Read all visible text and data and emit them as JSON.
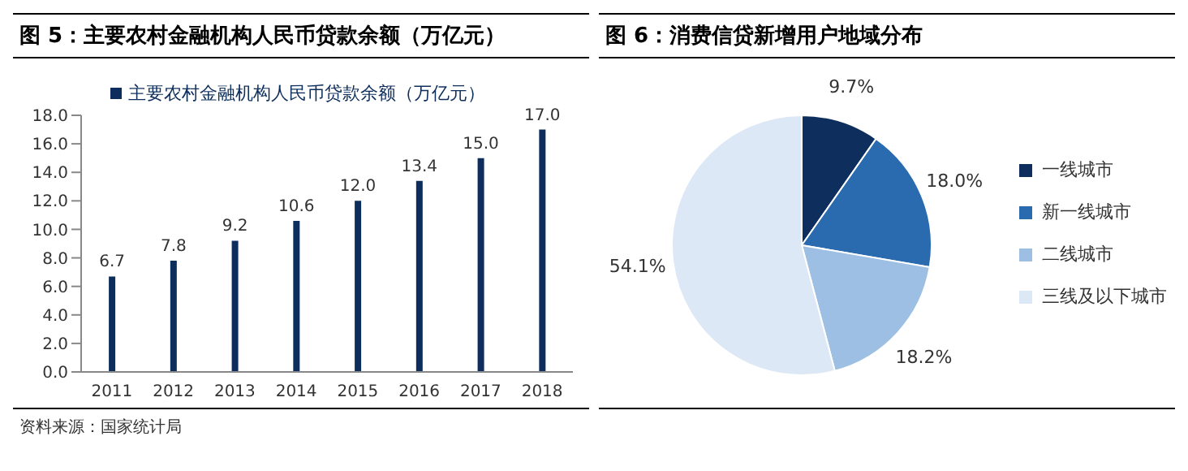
{
  "chart_data": [
    {
      "type": "bar",
      "title": "图 5：主要农村金融机构人民币贷款余额（万亿元）",
      "categories": [
        "2011",
        "2012",
        "2013",
        "2014",
        "2015",
        "2016",
        "2017",
        "2018"
      ],
      "series": [
        {
          "name": "主要农村金融机构人民币贷款余额（万亿元）",
          "color": "#0d2e5c",
          "values": [
            6.7,
            7.8,
            9.2,
            10.6,
            12.0,
            13.4,
            15.0,
            17.0
          ],
          "value_labels": [
            "6.7",
            "7.8",
            "9.2",
            "10.6",
            "12.0",
            "13.4",
            "15.0",
            "17.0"
          ]
        }
      ],
      "ylim": [
        0,
        18
      ],
      "yticks": [
        {
          "value": 0,
          "label": "0.0"
        },
        {
          "value": 2,
          "label": "2.0"
        },
        {
          "value": 4,
          "label": "4.0"
        },
        {
          "value": 6,
          "label": "6.0"
        },
        {
          "value": 8,
          "label": "8.0"
        },
        {
          "value": 10,
          "label": "10.0"
        },
        {
          "value": 12,
          "label": "12.0"
        },
        {
          "value": 14,
          "label": "14.0"
        },
        {
          "value": 16,
          "label": "16.0"
        },
        {
          "value": 18,
          "label": "18.0"
        }
      ],
      "grid": false,
      "legend": "top left",
      "annotations": [
        "资料来源：国家统计局"
      ]
    },
    {
      "type": "pie",
      "title": "图 6：消费信贷新增用户地域分布",
      "categories": [
        "一线城市",
        "新一线城市",
        "二线城市",
        "三线及以下城市"
      ],
      "values": [
        9.7,
        18.0,
        18.2,
        54.1
      ],
      "value_labels": [
        "9.7%",
        "18.0%",
        "18.2%",
        "54.1%"
      ],
      "colors": [
        "#0e2f5e",
        "#2a6bb0",
        "#9dbfe3",
        "#dce8f5"
      ],
      "legend": "right"
    }
  ]
}
